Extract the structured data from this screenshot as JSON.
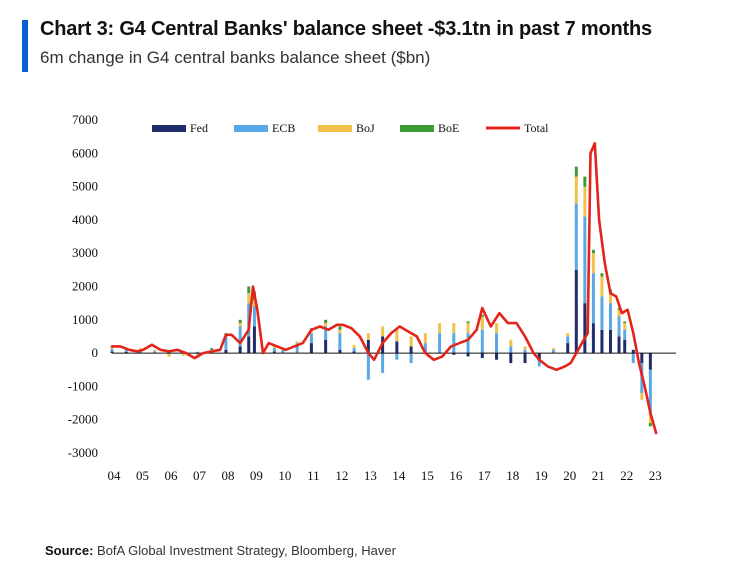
{
  "header": {
    "title": "Chart 3: G4 Central Banks' balance sheet -$3.1tn in past 7 months",
    "subtitle": "6m change in G4 central banks balance sheet ($bn)"
  },
  "footer": {
    "source_label": "Source:",
    "source_text": "BofA Global Investment Strategy, Bloomberg, Haver"
  },
  "colors": {
    "accent": "#0b5fd1",
    "Fed": "#1f2d6b",
    "ECB": "#5aa9e6",
    "BoJ": "#f0c14b",
    "BoE": "#3d9b35",
    "Total": "#e3241b"
  },
  "chart_data": {
    "type": "bar",
    "stacked": true,
    "title": "Chart 3: G4 Central Banks' balance sheet -$3.1tn in past 7 months",
    "ylabel": "6m change in G4 central banks balance sheet ($bn)",
    "xlabel": "",
    "ylim": [
      -3000,
      7000
    ],
    "yticks": [
      7000,
      6000,
      5000,
      4000,
      3000,
      2000,
      1000,
      0,
      -1000,
      -2000,
      -3000
    ],
    "xlim": [
      2004.0,
      2023.8
    ],
    "xticks": [
      "04",
      "05",
      "06",
      "07",
      "08",
      "09",
      "10",
      "11",
      "12",
      "13",
      "14",
      "15",
      "16",
      "17",
      "18",
      "19",
      "20",
      "21",
      "22",
      "23"
    ],
    "legend": [
      "Fed",
      "ECB",
      "BoJ",
      "BoE",
      "Total"
    ],
    "legend_position": "top",
    "series": [
      {
        "name": "Fed",
        "kind": "bar",
        "x": [
          2004.0,
          2004.5,
          2005.0,
          2005.5,
          2006.0,
          2006.5,
          2007.0,
          2007.5,
          2008.0,
          2008.5,
          2008.8,
          2009.0,
          2009.3,
          2009.7,
          2010.0,
          2010.5,
          2011.0,
          2011.5,
          2012.0,
          2012.5,
          2013.0,
          2013.5,
          2014.0,
          2014.5,
          2015.0,
          2015.5,
          2016.0,
          2016.5,
          2017.0,
          2017.5,
          2018.0,
          2018.5,
          2019.0,
          2019.5,
          2020.0,
          2020.3,
          2020.6,
          2020.9,
          2021.2,
          2021.5,
          2021.8,
          2022.0,
          2022.3,
          2022.6,
          2022.9
        ],
        "values": [
          50,
          40,
          20,
          10,
          -10,
          10,
          -20,
          0,
          100,
          200,
          500,
          800,
          0,
          50,
          0,
          0,
          300,
          400,
          100,
          50,
          400,
          500,
          350,
          200,
          0,
          0,
          -50,
          -100,
          -150,
          -200,
          -300,
          -300,
          -200,
          0,
          300,
          2500,
          1500,
          900,
          700,
          700,
          500,
          400,
          100,
          -300,
          -500
        ]
      },
      {
        "name": "ECB",
        "kind": "bar",
        "x": [
          2004.0,
          2004.5,
          2005.0,
          2005.5,
          2006.0,
          2006.5,
          2007.0,
          2007.5,
          2008.0,
          2008.5,
          2008.8,
          2009.0,
          2009.3,
          2009.7,
          2010.0,
          2010.5,
          2011.0,
          2011.5,
          2012.0,
          2012.5,
          2013.0,
          2013.5,
          2014.0,
          2014.5,
          2015.0,
          2015.5,
          2016.0,
          2016.5,
          2017.0,
          2017.5,
          2018.0,
          2018.5,
          2019.0,
          2019.5,
          2020.0,
          2020.3,
          2020.6,
          2020.9,
          2021.2,
          2021.5,
          2021.8,
          2022.0,
          2022.3,
          2022.6,
          2022.9
        ],
        "values": [
          80,
          60,
          50,
          40,
          40,
          30,
          40,
          100,
          400,
          600,
          1000,
          600,
          0,
          100,
          100,
          300,
          300,
          400,
          500,
          100,
          -800,
          -600,
          -200,
          -300,
          300,
          600,
          600,
          600,
          700,
          600,
          200,
          100,
          -200,
          100,
          200,
          2000,
          2600,
          1500,
          1000,
          800,
          600,
          300,
          -300,
          -900,
          -1300
        ]
      },
      {
        "name": "BoJ",
        "kind": "bar",
        "x": [
          2004.0,
          2004.5,
          2005.0,
          2005.5,
          2006.0,
          2006.5,
          2007.0,
          2007.5,
          2008.0,
          2008.5,
          2008.8,
          2009.0,
          2009.3,
          2009.7,
          2010.0,
          2010.5,
          2011.0,
          2011.5,
          2012.0,
          2012.5,
          2013.0,
          2013.5,
          2014.0,
          2014.5,
          2015.0,
          2015.5,
          2016.0,
          2016.5,
          2017.0,
          2017.5,
          2018.0,
          2018.5,
          2019.0,
          2019.5,
          2020.0,
          2020.3,
          2020.6,
          2020.9,
          2021.2,
          2021.5,
          2021.8,
          2022.0,
          2022.3,
          2022.6,
          2022.9
        ],
        "values": [
          50,
          40,
          80,
          30,
          -100,
          -80,
          -40,
          0,
          50,
          100,
          300,
          200,
          0,
          50,
          50,
          50,
          100,
          100,
          100,
          100,
          200,
          300,
          400,
          300,
          300,
          300,
          300,
          300,
          400,
          300,
          200,
          100,
          0,
          50,
          100,
          800,
          900,
          600,
          600,
          300,
          200,
          200,
          0,
          -200,
          -300
        ]
      },
      {
        "name": "BoE",
        "kind": "bar",
        "x": [
          2004.0,
          2004.5,
          2005.0,
          2005.5,
          2006.0,
          2006.5,
          2007.0,
          2007.5,
          2008.0,
          2008.5,
          2008.8,
          2009.0,
          2009.3,
          2009.7,
          2010.0,
          2010.5,
          2011.0,
          2011.5,
          2012.0,
          2012.5,
          2013.0,
          2013.5,
          2014.0,
          2014.5,
          2015.0,
          2015.5,
          2016.0,
          2016.5,
          2017.0,
          2017.5,
          2018.0,
          2018.5,
          2019.0,
          2019.5,
          2020.0,
          2020.3,
          2020.6,
          2020.9,
          2021.2,
          2021.5,
          2021.8,
          2022.0,
          2022.3,
          2022.6,
          2022.9
        ],
        "values": [
          10,
          10,
          0,
          10,
          0,
          0,
          0,
          50,
          50,
          100,
          200,
          250,
          50,
          50,
          0,
          0,
          50,
          100,
          100,
          0,
          0,
          0,
          0,
          0,
          0,
          0,
          0,
          50,
          50,
          0,
          0,
          0,
          0,
          0,
          0,
          300,
          300,
          100,
          100,
          100,
          50,
          50,
          0,
          0,
          -100
        ]
      },
      {
        "name": "Total",
        "kind": "line",
        "x": [
          2004.0,
          2004.3,
          2004.6,
          2004.9,
          2005.1,
          2005.4,
          2005.7,
          2006.0,
          2006.3,
          2006.6,
          2006.9,
          2007.2,
          2007.5,
          2007.8,
          2008.0,
          2008.2,
          2008.5,
          2008.8,
          2008.95,
          2009.1,
          2009.3,
          2009.5,
          2009.8,
          2010.1,
          2010.4,
          2010.7,
          2011.0,
          2011.3,
          2011.6,
          2011.9,
          2012.1,
          2012.4,
          2012.7,
          2013.0,
          2013.2,
          2013.5,
          2013.8,
          2014.1,
          2014.4,
          2014.7,
          2015.0,
          2015.3,
          2015.6,
          2015.9,
          2016.2,
          2016.5,
          2016.8,
          2017.0,
          2017.3,
          2017.6,
          2017.9,
          2018.2,
          2018.5,
          2018.8,
          2019.0,
          2019.3,
          2019.6,
          2019.9,
          2020.1,
          2020.3,
          2020.5,
          2020.7,
          2020.8,
          2020.95,
          2021.1,
          2021.3,
          2021.5,
          2021.7,
          2021.9,
          2022.1,
          2022.3,
          2022.5,
          2022.7,
          2022.9,
          2023.1
        ],
        "values": [
          200,
          200,
          100,
          50,
          100,
          250,
          100,
          50,
          100,
          0,
          -150,
          0,
          50,
          100,
          550,
          550,
          300,
          700,
          2000,
          1300,
          0,
          300,
          200,
          100,
          200,
          300,
          700,
          800,
          700,
          850,
          850,
          750,
          500,
          0,
          -200,
          300,
          600,
          800,
          650,
          500,
          0,
          -200,
          -100,
          200,
          300,
          400,
          700,
          1350,
          800,
          1200,
          900,
          900,
          500,
          0,
          -200,
          -400,
          -500,
          -400,
          -300,
          0,
          300,
          600,
          6000,
          6300,
          4000,
          2700,
          1800,
          1700,
          1200,
          1300,
          600,
          -300,
          -1000,
          -1800,
          -2400
        ]
      }
    ]
  }
}
